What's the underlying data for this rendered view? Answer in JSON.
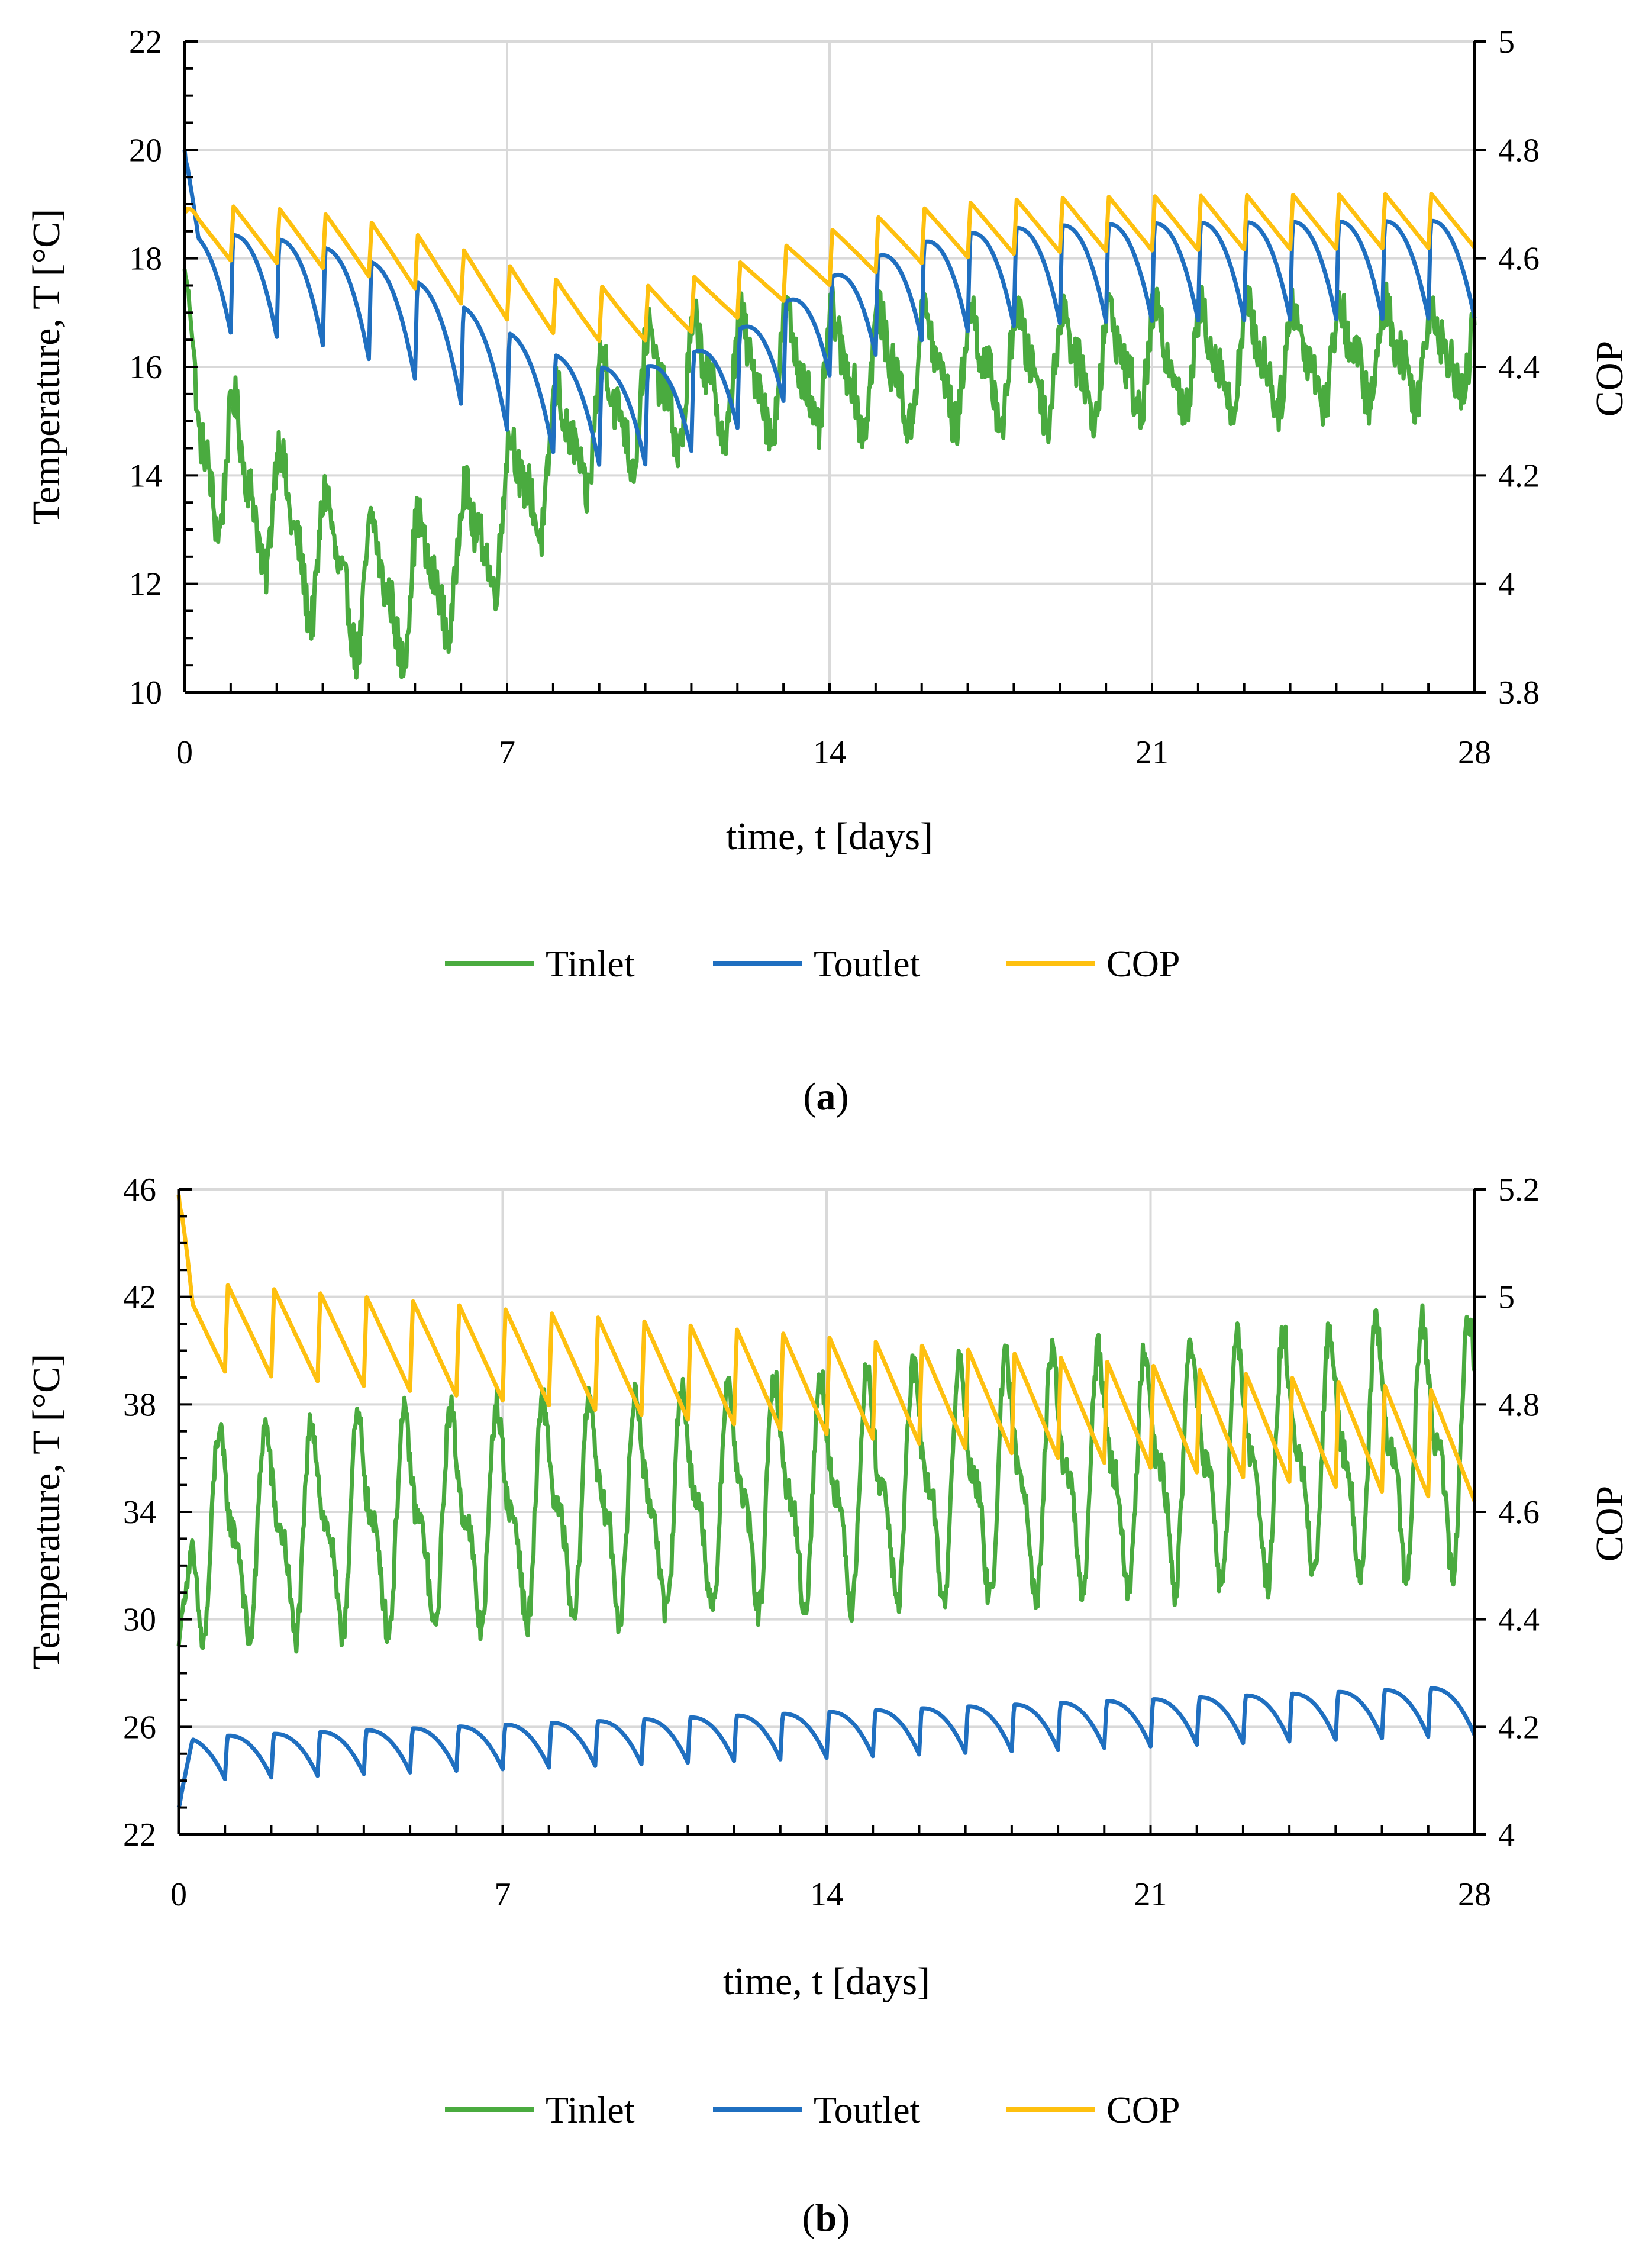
{
  "colors": {
    "tinlet": "#4aab3f",
    "toutlet": "#1f6fc0",
    "cop": "#fec00f",
    "grid": "#d9d9d9",
    "axis": "#000000"
  },
  "chart_data": [
    {
      "id": "a",
      "type": "line",
      "caption_open": "(",
      "caption_letter": "a",
      "caption_close": ")",
      "xlabel": "time, t [days]",
      "ylabel": "Temperature, T [°C]",
      "y2label": "COP",
      "xlim": [
        0,
        28
      ],
      "ylim": [
        10,
        22
      ],
      "y2lim": [
        3.8,
        5.0
      ],
      "xticks": [
        "0",
        "7",
        "14",
        "21",
        "28"
      ],
      "yticks": [
        "10",
        "12",
        "14",
        "16",
        "18",
        "20",
        "22"
      ],
      "y2ticks": [
        "3.8",
        "4",
        "4.2",
        "4.4",
        "4.6",
        "4.8",
        "5"
      ],
      "legend": [
        "Tinlet",
        "Toutlet",
        "COP"
      ],
      "legend_position": "bottom",
      "series": [
        {
          "name": "Tinlet",
          "axis": "left",
          "color_key": "tinlet",
          "start": 17.8,
          "base": 15.5,
          "base_end": 16.3,
          "amp": 1.6,
          "amp_end": 1.0,
          "dip_day": 4.5,
          "dip_depth": 3.8,
          "dip_width": 3.5,
          "period": 1,
          "phase": 0.1,
          "noise": 0.45
        },
        {
          "name": "Toutlet",
          "axis": "left",
          "color_key": "toutlet",
          "start": 20.0,
          "base": 17.6,
          "base_end": 17.8,
          "amp": 0.9,
          "amp_end": 0.9,
          "dip_day": 9.5,
          "dip_depth": 2.6,
          "dip_width": 4.5,
          "period": 1,
          "phase": 0.0,
          "noise": 0.0
        },
        {
          "name": "COP",
          "axis": "right",
          "color_key": "cop",
          "start": 4.69,
          "base": 4.65,
          "base_end": 4.67,
          "amp": 0.05,
          "amp_end": 0.05,
          "dip_day": 9.5,
          "dip_depth": 0.16,
          "dip_width": 4.5,
          "period": 1,
          "phase": 0.0,
          "noise": 0.0
        }
      ]
    },
    {
      "id": "b",
      "type": "line",
      "caption_open": "(",
      "caption_letter": "b",
      "caption_close": ")",
      "xlabel": "time, t [days]",
      "ylabel": "Temperature, T [°C]",
      "y2label": "COP",
      "xlim": [
        0,
        28
      ],
      "ylim": [
        22,
        46
      ],
      "y2lim": [
        4.0,
        5.2
      ],
      "xticks": [
        "0",
        "7",
        "14",
        "21",
        "28"
      ],
      "yticks": [
        "22",
        "26",
        "30",
        "34",
        "38",
        "42",
        "46"
      ],
      "y2ticks": [
        "4",
        "4.2",
        "4.4",
        "4.6",
        "4.8",
        "5",
        "5.2"
      ],
      "legend": [
        "Tinlet",
        "Toutlet",
        "COP"
      ],
      "legend_position": "bottom",
      "series": [
        {
          "name": "Tinlet",
          "axis": "left",
          "color_key": "tinlet",
          "start": 29.0,
          "base": 33.0,
          "base_end": 36.5,
          "amp": 4.5,
          "amp_end": 5.5,
          "dip_day": 0,
          "dip_depth": 0,
          "dip_width": 1,
          "period": 1,
          "phase": 0.3,
          "noise": 0.6
        },
        {
          "name": "Toutlet",
          "axis": "left",
          "color_key": "toutlet",
          "start": 23.0,
          "base": 24.8,
          "base_end": 26.6,
          "amp": 0.8,
          "amp_end": 0.9,
          "dip_day": 0,
          "dip_depth": 0,
          "dip_width": 1,
          "period": 1,
          "phase": 0.0,
          "noise": 0.0
        },
        {
          "name": "COP",
          "axis": "right",
          "color_key": "cop",
          "start": 5.19,
          "base": 4.95,
          "base_end": 4.72,
          "amp": 0.08,
          "amp_end": 0.1,
          "dip_day": 0,
          "dip_depth": 0,
          "dip_width": 1,
          "period": 1,
          "phase": 0.0,
          "noise": 0.0
        }
      ]
    }
  ]
}
